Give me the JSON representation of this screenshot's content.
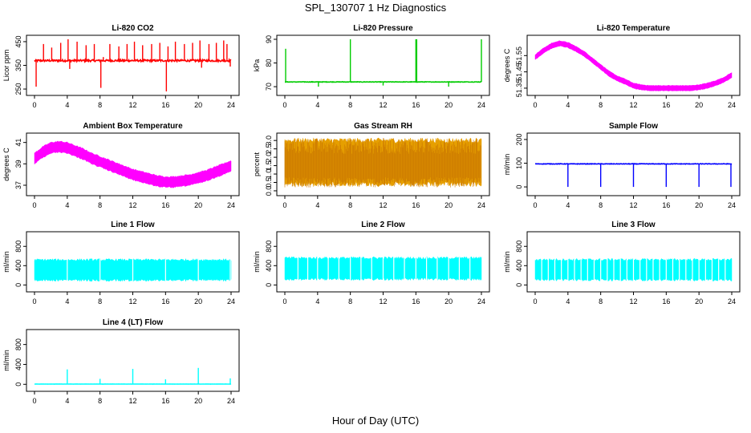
{
  "page": {
    "title": "SPL_130707  1 Hz Diagnostics",
    "xlabel": "Hour of Day (UTC)"
  },
  "colors": {
    "red": "#ff0000",
    "green": "#00cc00",
    "magenta": "#ff00ff",
    "orange": "#e69f00",
    "blue": "#0000ff",
    "cyan": "#00ffff"
  },
  "chart_data": [
    {
      "type": "line",
      "title": "Li-820 CO2",
      "ylabel": "Licor ppm",
      "color": "#ff0000",
      "xlim": [
        0,
        24
      ],
      "ylim": [
        240,
        460
      ],
      "xticks": [
        "0",
        "4",
        "8",
        "12",
        "16",
        "20",
        "24"
      ],
      "yticks": [
        "250",
        "350",
        "450"
      ],
      "baseline": 370,
      "noise": 8,
      "spikes": [
        [
          0.2,
          260
        ],
        [
          1.1,
          440
        ],
        [
          2.1,
          425
        ],
        [
          3.2,
          445
        ],
        [
          4.1,
          460
        ],
        [
          4.3,
          335
        ],
        [
          5.2,
          450
        ],
        [
          6.3,
          435
        ],
        [
          7.3,
          440
        ],
        [
          8.1,
          255
        ],
        [
          8.4,
          385
        ],
        [
          9.2,
          440
        ],
        [
          10.3,
          430
        ],
        [
          11.3,
          440
        ],
        [
          12.2,
          450
        ],
        [
          13.2,
          435
        ],
        [
          14.3,
          440
        ],
        [
          15.3,
          445
        ],
        [
          16.1,
          240
        ],
        [
          16.3,
          430
        ],
        [
          17.2,
          450
        ],
        [
          18.3,
          440
        ],
        [
          19.3,
          445
        ],
        [
          20.2,
          455
        ],
        [
          20.4,
          340
        ],
        [
          21.3,
          440
        ],
        [
          22.2,
          445
        ],
        [
          23.1,
          455
        ],
        [
          23.5,
          440
        ],
        [
          23.9,
          345
        ]
      ]
    },
    {
      "type": "line",
      "title": "Li-820 Pressure",
      "ylabel": "kPa",
      "color": "#00cc00",
      "xlim": [
        0,
        24
      ],
      "ylim": [
        68,
        90
      ],
      "xticks": [
        "0",
        "4",
        "8",
        "12",
        "16",
        "20",
        "24"
      ],
      "yticks": [
        "70",
        "80",
        "90"
      ],
      "baseline": 72,
      "noise": 0.2,
      "spikes": [
        [
          0.1,
          86
        ],
        [
          4.1,
          70
        ],
        [
          8.0,
          90
        ],
        [
          12.0,
          70.5
        ],
        [
          16.0,
          90
        ],
        [
          16.1,
          90
        ],
        [
          20.0,
          70
        ],
        [
          24.0,
          90
        ]
      ]
    },
    {
      "type": "band",
      "title": "Li-820 Temperature",
      "ylabel": "degrees C",
      "color": "#ff00ff",
      "xlim": [
        0,
        24
      ],
      "ylim": [
        51.33,
        51.65
      ],
      "xticks": [
        "0",
        "4",
        "8",
        "12",
        "16",
        "20",
        "24"
      ],
      "yticks": [
        "51.35",
        "51.45",
        "51.55"
      ],
      "curve": [
        [
          0,
          51.54
        ],
        [
          1,
          51.58
        ],
        [
          2,
          51.61
        ],
        [
          3,
          51.625
        ],
        [
          4,
          51.615
        ],
        [
          5,
          51.59
        ],
        [
          6,
          51.56
        ],
        [
          7,
          51.52
        ],
        [
          8,
          51.48
        ],
        [
          9,
          51.44
        ],
        [
          10,
          51.41
        ],
        [
          11,
          51.39
        ],
        [
          12,
          51.365
        ],
        [
          13,
          51.355
        ],
        [
          14,
          51.35
        ],
        [
          15,
          51.35
        ],
        [
          16,
          51.35
        ],
        [
          17,
          51.35
        ],
        [
          18,
          51.35
        ],
        [
          19,
          51.35
        ],
        [
          20,
          51.355
        ],
        [
          21,
          51.365
        ],
        [
          22,
          51.38
        ],
        [
          23,
          51.4
        ],
        [
          24,
          51.43
        ]
      ],
      "band": 0.032
    },
    {
      "type": "band",
      "title": "Ambient Box Temperature",
      "ylabel": "degrees C",
      "color": "#ff00ff",
      "xlim": [
        0,
        24
      ],
      "ylim": [
        36.4,
        41.5
      ],
      "xticks": [
        "0",
        "4",
        "8",
        "12",
        "16",
        "20",
        "24"
      ],
      "yticks": [
        "37",
        "39",
        "41"
      ],
      "curve": [
        [
          0,
          39.5
        ],
        [
          1,
          40.1
        ],
        [
          2,
          40.5
        ],
        [
          3,
          40.6
        ],
        [
          4,
          40.5
        ],
        [
          5,
          40.2
        ],
        [
          6,
          39.9
        ],
        [
          7,
          39.5
        ],
        [
          8,
          39.2
        ],
        [
          9,
          38.9
        ],
        [
          10,
          38.6
        ],
        [
          11,
          38.3
        ],
        [
          12,
          38.0
        ],
        [
          13,
          37.8
        ],
        [
          14,
          37.6
        ],
        [
          15,
          37.4
        ],
        [
          16,
          37.3
        ],
        [
          17,
          37.3
        ],
        [
          18,
          37.4
        ],
        [
          19,
          37.5
        ],
        [
          20,
          37.7
        ],
        [
          21,
          37.9
        ],
        [
          22,
          38.2
        ],
        [
          23,
          38.5
        ],
        [
          24,
          38.8
        ]
      ],
      "band": 1.0
    },
    {
      "type": "band",
      "title": "Gas Stream RH",
      "ylabel": "percent",
      "color": "#e69f00",
      "xlim": [
        0,
        24
      ],
      "ylim": [
        -0.05,
        3.2
      ],
      "xticks": [
        "0",
        "4",
        "8",
        "12",
        "16",
        "20",
        "24"
      ],
      "yticks": [
        "0.0",
        "0.5",
        "1.0",
        "1.5",
        "2.0",
        "2.5",
        "3.0"
      ],
      "curve": [
        [
          0,
          1.7
        ],
        [
          24,
          1.7
        ]
      ],
      "band": 2.6
    },
    {
      "type": "line",
      "title": "Sample Flow",
      "ylabel": "ml/min",
      "color": "#0000ff",
      "xlim": [
        0,
        24
      ],
      "ylim": [
        -20,
        210
      ],
      "xticks": [
        "0",
        "4",
        "8",
        "12",
        "16",
        "20",
        "24"
      ],
      "yticks": [
        "0",
        "100",
        "200"
      ],
      "baseline": 97,
      "noise": 2,
      "spikes": [
        [
          4.0,
          0
        ],
        [
          8.0,
          0
        ],
        [
          12.0,
          0
        ],
        [
          16.0,
          0
        ],
        [
          20.0,
          0
        ],
        [
          23.9,
          0
        ]
      ]
    },
    {
      "type": "band",
      "title": "Line 1 Flow",
      "ylabel": "ml/min",
      "color": "#00ffff",
      "xlim": [
        0,
        24
      ],
      "ylim": [
        -60,
        1020
      ],
      "xticks": [
        "0",
        "4",
        "8",
        "12",
        "16",
        "20",
        "24"
      ],
      "yticks": [
        "0",
        "400",
        "800"
      ],
      "curve": [
        [
          0,
          310
        ],
        [
          24,
          310
        ]
      ],
      "band": 420,
      "gaps": [
        4.0,
        8.0,
        12.0,
        16.0,
        20.0,
        23.9
      ]
    },
    {
      "type": "band",
      "title": "Line 2 Flow",
      "ylabel": "ml/min",
      "color": "#00ffff",
      "xlim": [
        0,
        24
      ],
      "ylim": [
        -60,
        1020
      ],
      "xticks": [
        "0",
        "4",
        "8",
        "12",
        "16",
        "20",
        "24"
      ],
      "yticks": [
        "0",
        "400",
        "800"
      ],
      "curve": [
        [
          0,
          340
        ],
        [
          24,
          340
        ]
      ],
      "band": 440,
      "gaps": [
        1.6,
        2.8,
        4.0,
        5.3,
        6.6,
        8.0,
        9.3,
        10.6,
        12.0,
        13.3,
        14.6,
        16.0,
        17.3,
        18.6,
        20.0,
        21.3,
        22.6
      ]
    },
    {
      "type": "band",
      "title": "Line 3 Flow",
      "ylabel": "ml/min",
      "color": "#00ffff",
      "xlim": [
        0,
        24
      ],
      "ylim": [
        -60,
        1020
      ],
      "xticks": [
        "0",
        "4",
        "8",
        "12",
        "16",
        "20",
        "24"
      ],
      "yticks": [
        "0",
        "400",
        "800"
      ],
      "curve": [
        [
          0,
          315
        ],
        [
          24,
          315
        ]
      ],
      "band": 420,
      "gaps": [
        0.8,
        1.6,
        2.4,
        3.2,
        4.0,
        4.8,
        5.6,
        6.4,
        7.2,
        8.0,
        8.8,
        9.6,
        10.4,
        11.2,
        12.0,
        12.8,
        13.6,
        14.4,
        15.2,
        16.0,
        16.8,
        17.6,
        18.4,
        19.2,
        20.0,
        20.8,
        21.6,
        22.4,
        23.2
      ]
    },
    {
      "type": "line",
      "title": "Line 4 (LT) Flow",
      "ylabel": "ml/min",
      "color": "#00ffff",
      "xlim": [
        0,
        24
      ],
      "ylim": [
        -60,
        1020
      ],
      "xticks": [
        "0",
        "4",
        "8",
        "12",
        "16",
        "20",
        "24"
      ],
      "yticks": [
        "0",
        "400",
        "800"
      ],
      "baseline": 5,
      "noise": 3,
      "spikes": [
        [
          4.0,
          300
        ],
        [
          8.0,
          110
        ],
        [
          12.0,
          310
        ],
        [
          16.0,
          100
        ],
        [
          20.0,
          330
        ],
        [
          23.9,
          120
        ]
      ]
    }
  ]
}
